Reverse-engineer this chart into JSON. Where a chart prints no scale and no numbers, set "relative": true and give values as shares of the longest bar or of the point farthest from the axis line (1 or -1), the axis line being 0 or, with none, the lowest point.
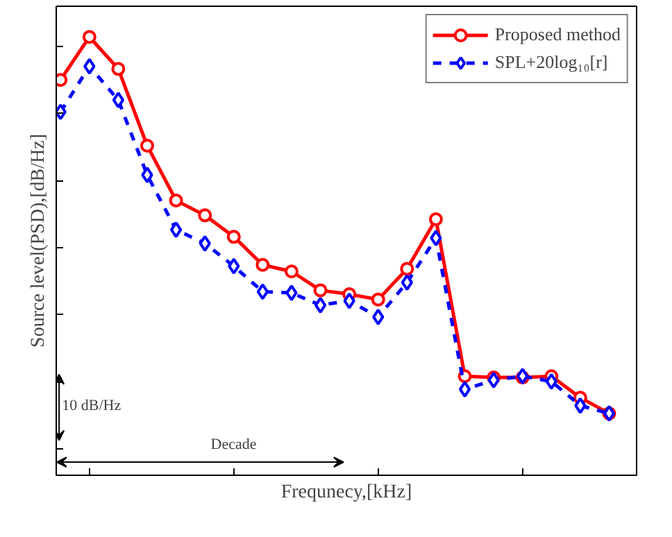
{
  "chart_data": {
    "type": "line",
    "relative": true,
    "xlabel": "Frequnecy,[kHz]",
    "ylabel": "Source level(PSD),[dB/Hz]",
    "categories": [
      null,
      null,
      null,
      null,
      null,
      null,
      null,
      null,
      null,
      null,
      null,
      null,
      null,
      null,
      null,
      null,
      null,
      null,
      null,
      null
    ],
    "series": [
      {
        "name": "Proposed method",
        "color": "#ff0000",
        "marker": "circle",
        "line_style": "solid",
        "values": [
          0.902,
          1,
          0.927,
          0.752,
          0.627,
          0.593,
          0.544,
          0.48,
          0.465,
          0.422,
          0.413,
          0.401,
          0.471,
          0.584,
          0.226,
          0.223,
          0.223,
          0.226,
          0.177,
          0.141
        ]
      },
      {
        "name": "SPL+20log₁₀[r]",
        "color": "#0000ff",
        "marker": "diamond",
        "line_style": "dashed",
        "values": [
          0.829,
          0.933,
          0.856,
          0.685,
          0.56,
          0.529,
          0.477,
          0.419,
          0.416,
          0.388,
          0.398,
          0.361,
          0.44,
          0.541,
          0.196,
          0.217,
          0.226,
          0.214,
          0.159,
          0.141
        ]
      }
    ],
    "annotations": [
      "10 dB/Hz",
      "Decade"
    ],
    "legend": "top right",
    "tick_labels": false,
    "grid": false
  }
}
